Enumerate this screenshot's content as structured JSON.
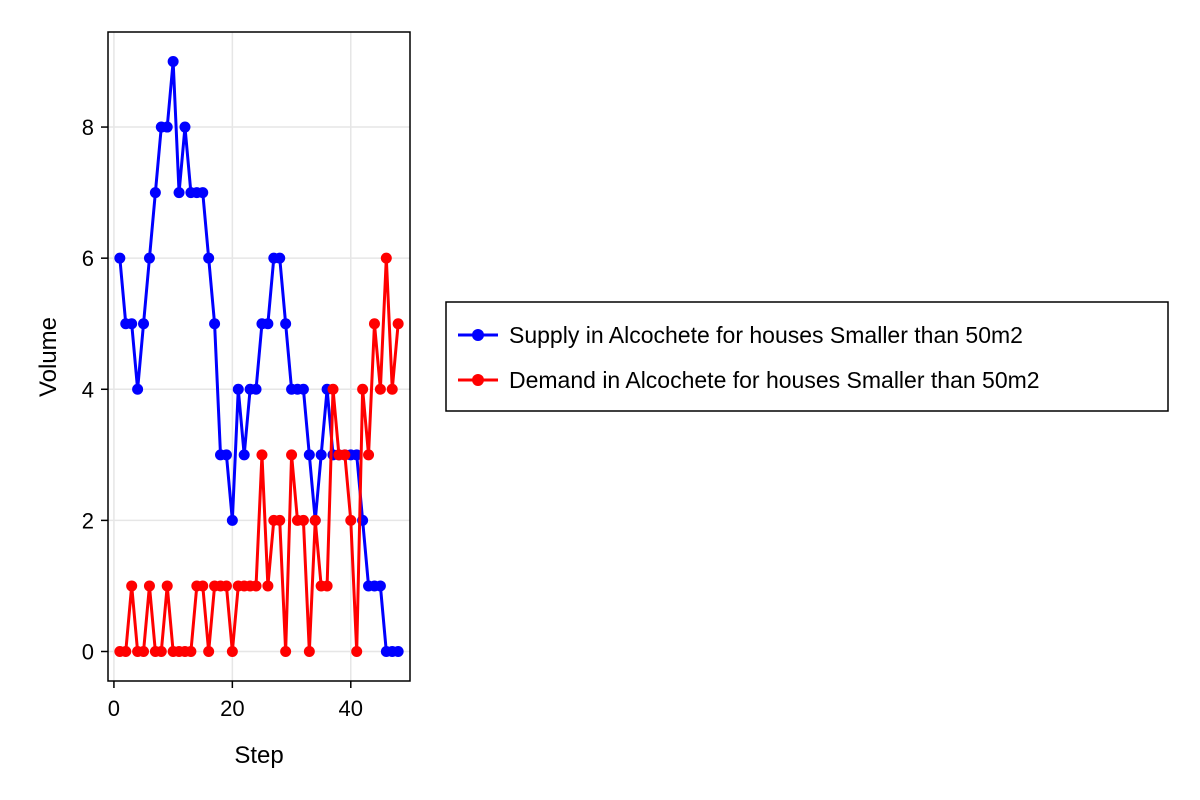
{
  "chart_data": {
    "type": "line",
    "xlabel": "Step",
    "ylabel": "Volume",
    "xlim": [
      -1,
      50
    ],
    "ylim": [
      -0.45,
      9.45
    ],
    "x_ticks": [
      0,
      20,
      40
    ],
    "y_ticks": [
      0,
      2,
      4,
      6,
      8
    ],
    "grid": true,
    "legend_position": "right",
    "series": [
      {
        "name": "Supply in Alcochete for houses Smaller than 50m2",
        "color": "#0000ff",
        "x": [
          1,
          2,
          3,
          4,
          5,
          6,
          7,
          8,
          9,
          10,
          11,
          12,
          13,
          14,
          15,
          16,
          17,
          18,
          19,
          20,
          21,
          22,
          23,
          24,
          25,
          26,
          27,
          28,
          29,
          30,
          31,
          32,
          33,
          34,
          35,
          36,
          37,
          38,
          39,
          40,
          41,
          42,
          43,
          44,
          45,
          46,
          47,
          48
        ],
        "values": [
          6,
          5,
          5,
          4,
          5,
          6,
          7,
          8,
          8,
          9,
          7,
          8,
          7,
          7,
          7,
          6,
          5,
          3,
          3,
          2,
          4,
          3,
          4,
          4,
          5,
          5,
          6,
          6,
          5,
          4,
          4,
          4,
          3,
          2,
          3,
          4,
          3,
          3,
          3,
          3,
          3,
          2,
          1,
          1,
          1,
          0,
          0,
          0
        ]
      },
      {
        "name": "Demand in Alcochete for houses Smaller than 50m2",
        "color": "#ff0000",
        "x": [
          1,
          2,
          3,
          4,
          5,
          6,
          7,
          8,
          9,
          10,
          11,
          12,
          13,
          14,
          15,
          16,
          17,
          18,
          19,
          20,
          21,
          22,
          23,
          24,
          25,
          26,
          27,
          28,
          29,
          30,
          31,
          32,
          33,
          34,
          35,
          36,
          37,
          38,
          39,
          40,
          41,
          42,
          43,
          44,
          45,
          46,
          47,
          48
        ],
        "values": [
          0,
          0,
          1,
          0,
          0,
          1,
          0,
          0,
          1,
          0,
          0,
          0,
          0,
          1,
          1,
          0,
          1,
          1,
          1,
          0,
          1,
          1,
          1,
          1,
          3,
          1,
          2,
          2,
          0,
          3,
          2,
          2,
          0,
          2,
          1,
          1,
          4,
          3,
          3,
          2,
          0,
          4,
          3,
          5,
          4,
          6,
          4,
          5
        ]
      }
    ]
  }
}
